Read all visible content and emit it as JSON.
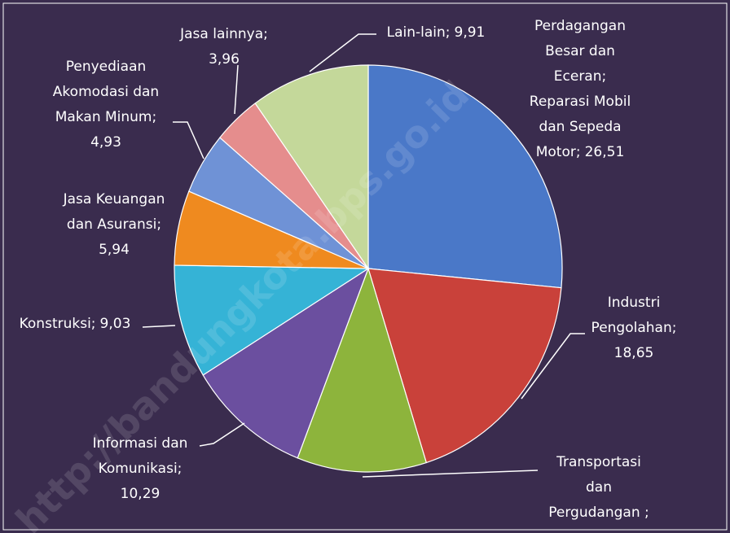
{
  "chart_data": {
    "type": "pie",
    "categories": [
      [
        "Perdagangan",
        "Besar dan",
        "Eceran;",
        "Reparasi Mobil",
        "dan Sepeda",
        "Motor;"
      ],
      [
        "Industri",
        "Pengolahan;"
      ],
      [
        "Transportasi",
        "dan",
        "Pergudangan ;"
      ],
      [
        "Informasi dan",
        "Komunikasi;"
      ],
      [
        "Konstruksi;"
      ],
      [
        "Jasa Keuangan",
        "dan Asuransi;"
      ],
      [
        "Penyediaan",
        "Akomodasi dan",
        "Makan Minum;"
      ],
      [
        "Jasa lainnya;"
      ],
      [
        "Lain-lain;"
      ]
    ],
    "values": [
      26.51,
      18.65,
      10.78,
      10.29,
      9.03,
      5.94,
      4.93,
      3.96,
      9.91
    ],
    "value_labels": [
      "26,51",
      "18,65",
      null,
      "10,29",
      "9,03",
      "5,94",
      "4,93",
      "3,96",
      "9,91"
    ],
    "colors": [
      "#4a78c8",
      "#c9413a",
      "#8db43c",
      "#6b4f9f",
      "#35b3d6",
      "#ef8a1f",
      "#6f92d6",
      "#e58d8d",
      "#c4d89a"
    ],
    "watermark": "http://bandungkota.bps.go.id"
  }
}
